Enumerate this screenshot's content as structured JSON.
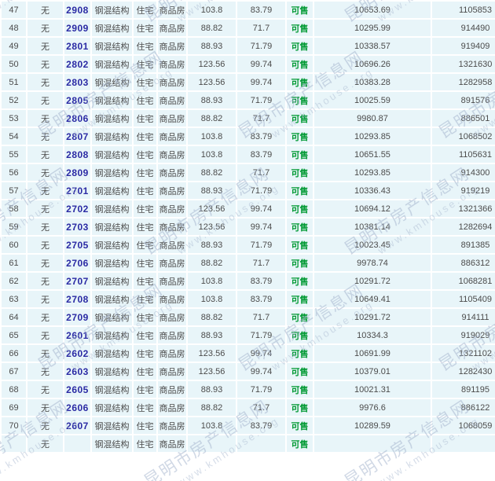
{
  "watermark": {
    "text_cn": "昆明市房产信息网",
    "text_en": "www.kmhouse.org",
    "color_cn": "#a3b3cd",
    "color_en": "#aebdd3"
  },
  "colors": {
    "cell_background": "#e8f5f9",
    "grid_gap": "#ffffff",
    "text": "#4b4b4b",
    "room_link": "#2a2aa4",
    "status_green": "#009933"
  },
  "table": {
    "rows": [
      {
        "index": "47",
        "flag": "无",
        "room": "2908",
        "structure": "钢混结构",
        "usage": "住宅",
        "htype": "商品房",
        "area1": "103.8",
        "area2": "83.79",
        "status": "可售",
        "price": "10653.69",
        "total": "1105853"
      },
      {
        "index": "48",
        "flag": "无",
        "room": "2909",
        "structure": "钢混结构",
        "usage": "住宅",
        "htype": "商品房",
        "area1": "88.82",
        "area2": "71.7",
        "status": "可售",
        "price": "10295.99",
        "total": "914490"
      },
      {
        "index": "49",
        "flag": "无",
        "room": "2801",
        "structure": "钢混结构",
        "usage": "住宅",
        "htype": "商品房",
        "area1": "88.93",
        "area2": "71.79",
        "status": "可售",
        "price": "10338.57",
        "total": "919409"
      },
      {
        "index": "50",
        "flag": "无",
        "room": "2802",
        "structure": "钢混结构",
        "usage": "住宅",
        "htype": "商品房",
        "area1": "123.56",
        "area2": "99.74",
        "status": "可售",
        "price": "10696.26",
        "total": "1321630"
      },
      {
        "index": "51",
        "flag": "无",
        "room": "2803",
        "structure": "钢混结构",
        "usage": "住宅",
        "htype": "商品房",
        "area1": "123.56",
        "area2": "99.74",
        "status": "可售",
        "price": "10383.28",
        "total": "1282958"
      },
      {
        "index": "52",
        "flag": "无",
        "room": "2805",
        "structure": "钢混结构",
        "usage": "住宅",
        "htype": "商品房",
        "area1": "88.93",
        "area2": "71.79",
        "status": "可售",
        "price": "10025.59",
        "total": "891576"
      },
      {
        "index": "53",
        "flag": "无",
        "room": "2806",
        "structure": "钢混结构",
        "usage": "住宅",
        "htype": "商品房",
        "area1": "88.82",
        "area2": "71.7",
        "status": "可售",
        "price": "9980.87",
        "total": "886501"
      },
      {
        "index": "54",
        "flag": "无",
        "room": "2807",
        "structure": "钢混结构",
        "usage": "住宅",
        "htype": "商品房",
        "area1": "103.8",
        "area2": "83.79",
        "status": "可售",
        "price": "10293.85",
        "total": "1068502"
      },
      {
        "index": "55",
        "flag": "无",
        "room": "2808",
        "structure": "钢混结构",
        "usage": "住宅",
        "htype": "商品房",
        "area1": "103.8",
        "area2": "83.79",
        "status": "可售",
        "price": "10651.55",
        "total": "1105631"
      },
      {
        "index": "56",
        "flag": "无",
        "room": "2809",
        "structure": "钢混结构",
        "usage": "住宅",
        "htype": "商品房",
        "area1": "88.82",
        "area2": "71.7",
        "status": "可售",
        "price": "10293.85",
        "total": "914300"
      },
      {
        "index": "57",
        "flag": "无",
        "room": "2701",
        "structure": "钢混结构",
        "usage": "住宅",
        "htype": "商品房",
        "area1": "88.93",
        "area2": "71.79",
        "status": "可售",
        "price": "10336.43",
        "total": "919219"
      },
      {
        "index": "58",
        "flag": "无",
        "room": "2702",
        "structure": "钢混结构",
        "usage": "住宅",
        "htype": "商品房",
        "area1": "123.56",
        "area2": "99.74",
        "status": "可售",
        "price": "10694.12",
        "total": "1321366"
      },
      {
        "index": "59",
        "flag": "无",
        "room": "2703",
        "structure": "钢混结构",
        "usage": "住宅",
        "htype": "商品房",
        "area1": "123.56",
        "area2": "99.74",
        "status": "可售",
        "price": "10381.14",
        "total": "1282694"
      },
      {
        "index": "60",
        "flag": "无",
        "room": "2705",
        "structure": "钢混结构",
        "usage": "住宅",
        "htype": "商品房",
        "area1": "88.93",
        "area2": "71.79",
        "status": "可售",
        "price": "10023.45",
        "total": "891385"
      },
      {
        "index": "61",
        "flag": "无",
        "room": "2706",
        "structure": "钢混结构",
        "usage": "住宅",
        "htype": "商品房",
        "area1": "88.82",
        "area2": "71.7",
        "status": "可售",
        "price": "9978.74",
        "total": "886312"
      },
      {
        "index": "62",
        "flag": "无",
        "room": "2707",
        "structure": "钢混结构",
        "usage": "住宅",
        "htype": "商品房",
        "area1": "103.8",
        "area2": "83.79",
        "status": "可售",
        "price": "10291.72",
        "total": "1068281"
      },
      {
        "index": "63",
        "flag": "无",
        "room": "2708",
        "structure": "钢混结构",
        "usage": "住宅",
        "htype": "商品房",
        "area1": "103.8",
        "area2": "83.79",
        "status": "可售",
        "price": "10649.41",
        "total": "1105409"
      },
      {
        "index": "64",
        "flag": "无",
        "room": "2709",
        "structure": "钢混结构",
        "usage": "住宅",
        "htype": "商品房",
        "area1": "88.82",
        "area2": "71.7",
        "status": "可售",
        "price": "10291.72",
        "total": "914111"
      },
      {
        "index": "65",
        "flag": "无",
        "room": "2601",
        "structure": "钢混结构",
        "usage": "住宅",
        "htype": "商品房",
        "area1": "88.93",
        "area2": "71.79",
        "status": "可售",
        "price": "10334.3",
        "total": "919029"
      },
      {
        "index": "66",
        "flag": "无",
        "room": "2602",
        "structure": "钢混结构",
        "usage": "住宅",
        "htype": "商品房",
        "area1": "123.56",
        "area2": "99.74",
        "status": "可售",
        "price": "10691.99",
        "total": "1321102"
      },
      {
        "index": "67",
        "flag": "无",
        "room": "2603",
        "structure": "钢混结构",
        "usage": "住宅",
        "htype": "商品房",
        "area1": "123.56",
        "area2": "99.74",
        "status": "可售",
        "price": "10379.01",
        "total": "1282430"
      },
      {
        "index": "68",
        "flag": "无",
        "room": "2605",
        "structure": "钢混结构",
        "usage": "住宅",
        "htype": "商品房",
        "area1": "88.93",
        "area2": "71.79",
        "status": "可售",
        "price": "10021.31",
        "total": "891195"
      },
      {
        "index": "69",
        "flag": "无",
        "room": "2606",
        "structure": "钢混结构",
        "usage": "住宅",
        "htype": "商品房",
        "area1": "88.82",
        "area2": "71.7",
        "status": "可售",
        "price": "9976.6",
        "total": "886122"
      },
      {
        "index": "70",
        "flag": "无",
        "room": "2607",
        "structure": "钢混结构",
        "usage": "住宅",
        "htype": "商品房",
        "area1": "103.8",
        "area2": "83.79",
        "status": "可售",
        "price": "10289.59",
        "total": "1068059"
      }
    ],
    "partial_row": {
      "index": "",
      "flag": "无",
      "room": "",
      "structure": "钢混结构",
      "usage": "住宅",
      "htype": "商品房",
      "area1": "",
      "area2": "",
      "status": "可售",
      "price": "",
      "total": ""
    }
  }
}
